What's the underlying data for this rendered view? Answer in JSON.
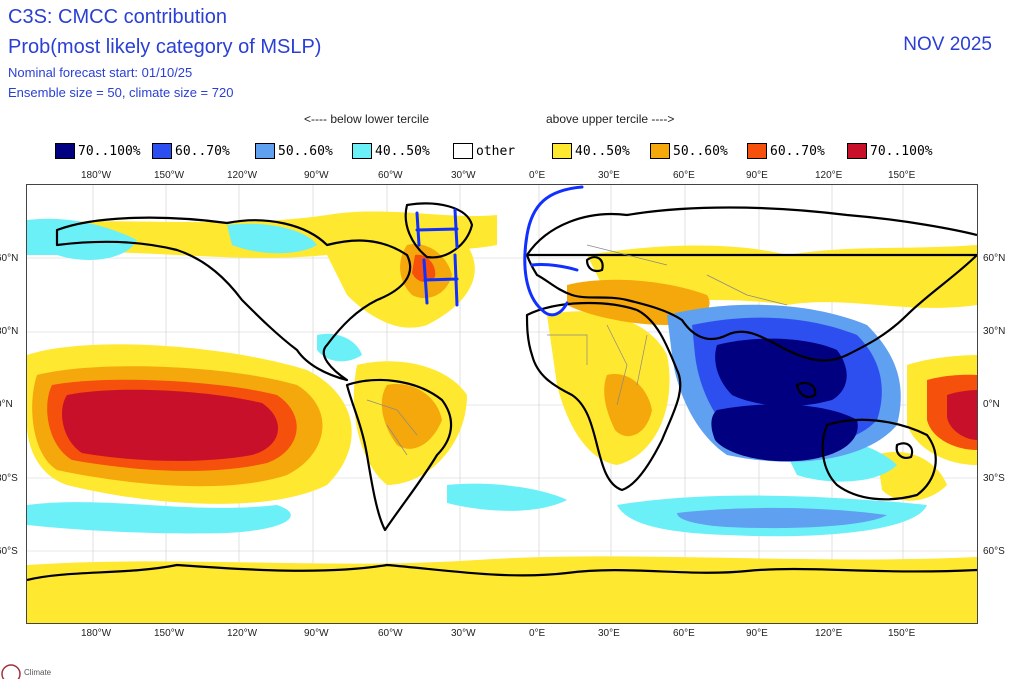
{
  "header": {
    "title": "C3S: CMCC contribution",
    "subtitle": "Prob(most likely category of MSLP)",
    "forecast_start": "Nominal forecast start: 01/10/25",
    "ensemble": "Ensemble size = 50, climate size = 720",
    "month": "NOV 2025"
  },
  "legend": {
    "below_label": "<---- below lower tercile",
    "above_label": "above upper tercile ---->",
    "items": [
      {
        "label": "70..100%",
        "color": "#000080"
      },
      {
        "label": "60..70%",
        "color": "#2e4ff0"
      },
      {
        "label": "50..60%",
        "color": "#5fa0f0"
      },
      {
        "label": "40..50%",
        "color": "#6cf0f8"
      },
      {
        "label": "other",
        "color": "#ffffff"
      },
      {
        "label": "40..50%",
        "color": "#ffe830"
      },
      {
        "label": "50..60%",
        "color": "#f5a80c"
      },
      {
        "label": "60..70%",
        "color": "#f5500c"
      },
      {
        "label": "70..100%",
        "color": "#c8102a"
      }
    ]
  },
  "axes": {
    "lon_labels": [
      "180°W",
      "150°W",
      "120°W",
      "90°W",
      "60°W",
      "30°W",
      "0°E",
      "30°E",
      "60°E",
      "90°E",
      "120°E",
      "150°E"
    ],
    "lat_labels": [
      "60°N",
      "30°N",
      "0°N",
      "30°S",
      "60°S"
    ]
  },
  "annotations": {
    "h1": "H",
    "h2": "H",
    "e": "E"
  },
  "logo": {
    "text": "Climate"
  }
}
